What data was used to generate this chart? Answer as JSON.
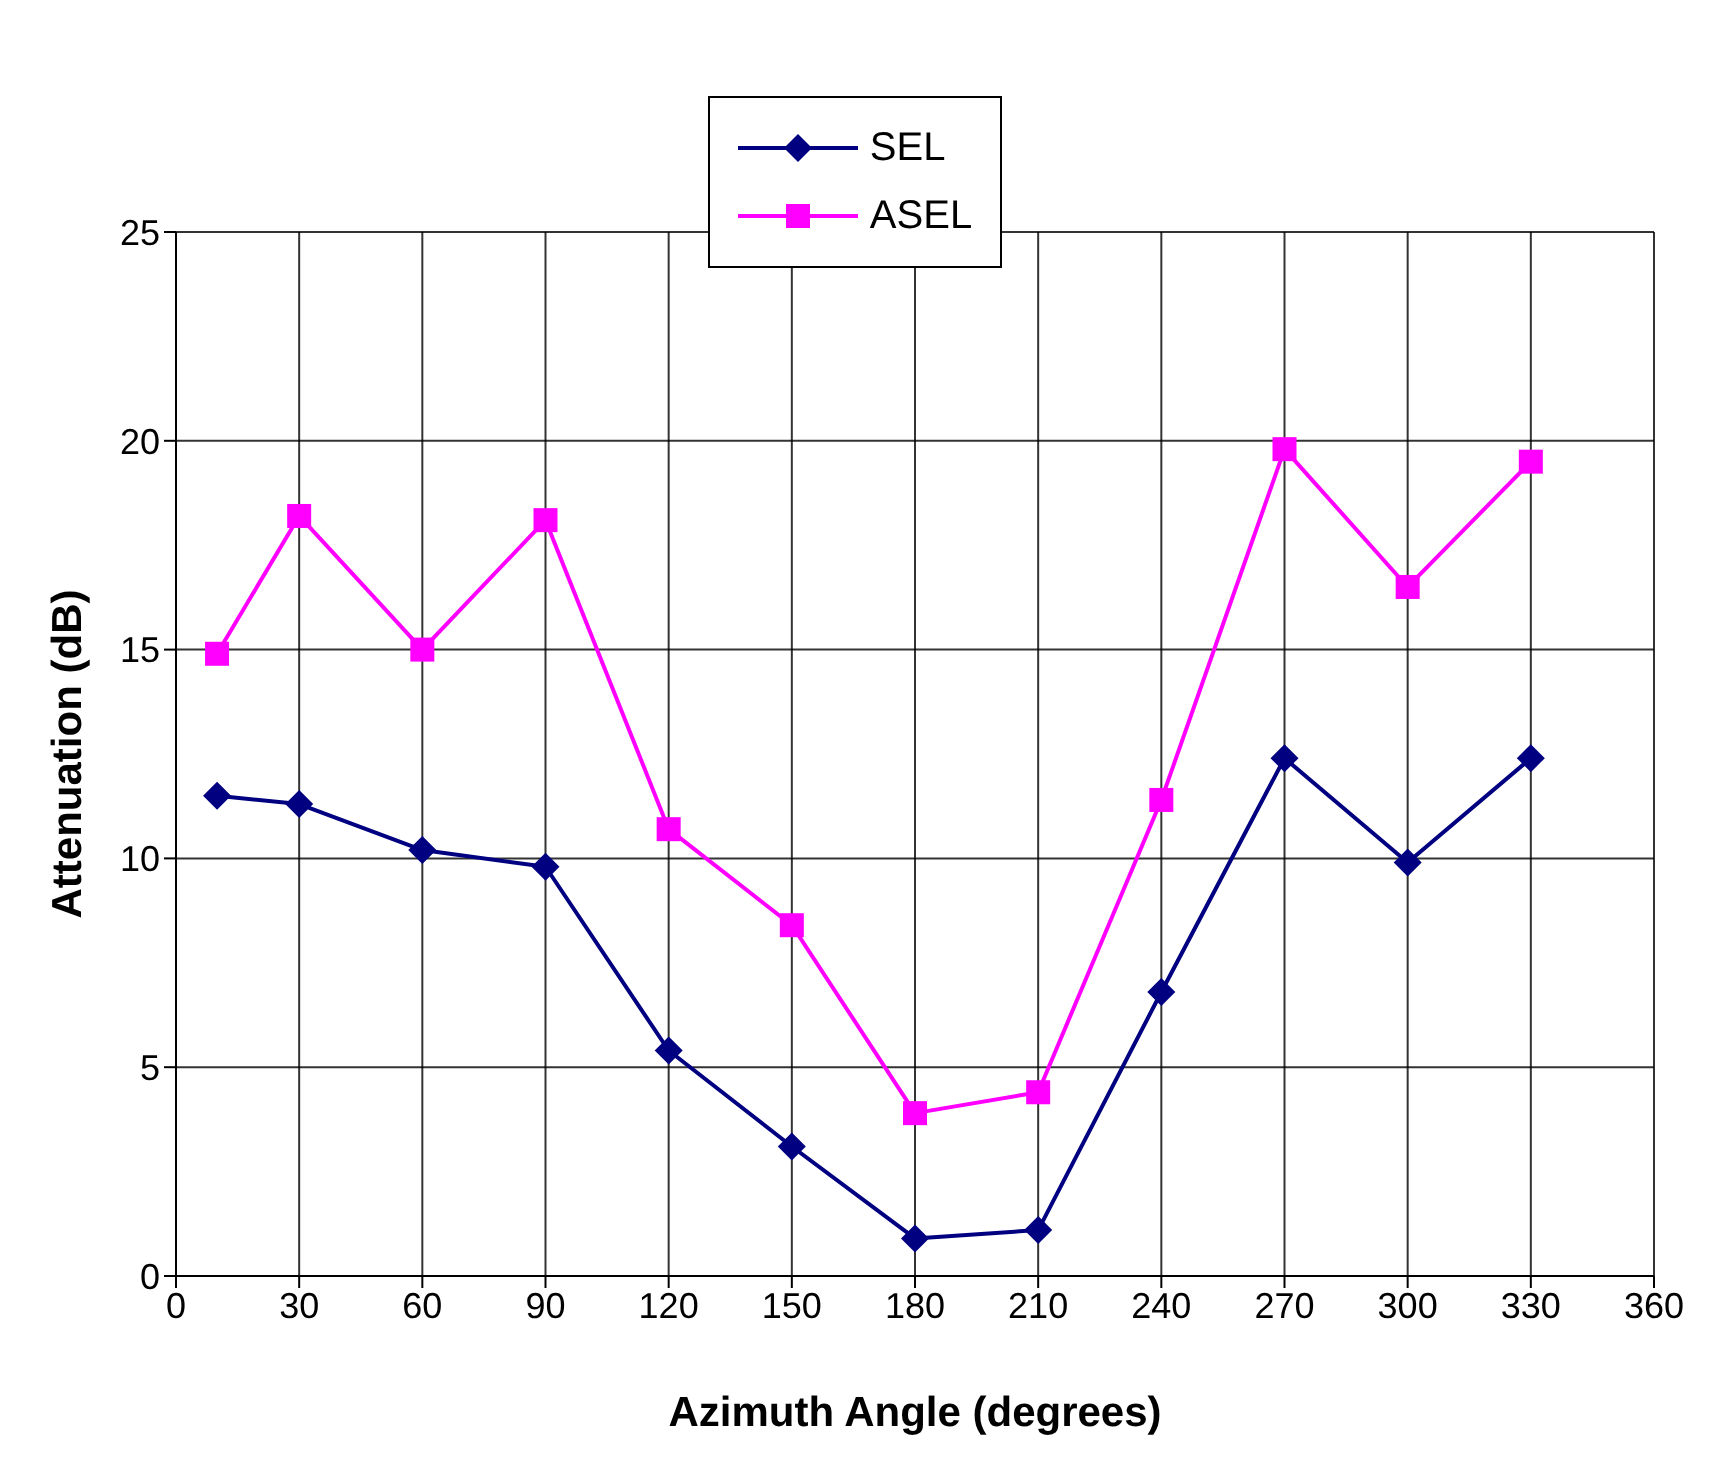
{
  "chart_data": {
    "type": "line",
    "xlabel": "Azimuth Angle (degrees)",
    "ylabel": "Attenuation (dB)",
    "x": [
      10,
      30,
      60,
      90,
      120,
      150,
      180,
      210,
      240,
      270,
      300,
      330
    ],
    "series": [
      {
        "name": "SEL",
        "color": "#000080",
        "marker": "diamond",
        "values": [
          11.5,
          11.3,
          10.2,
          9.8,
          5.4,
          3.1,
          0.9,
          1.1,
          6.8,
          12.4,
          9.9,
          12.4
        ]
      },
      {
        "name": "ASEL",
        "color": "#ff00ff",
        "marker": "square",
        "values": [
          14.9,
          18.2,
          15.0,
          18.1,
          10.7,
          8.4,
          3.9,
          4.4,
          11.4,
          19.8,
          16.5,
          19.5
        ]
      }
    ],
    "xlim": [
      0,
      360
    ],
    "xticks": [
      0,
      30,
      60,
      90,
      120,
      150,
      180,
      210,
      240,
      270,
      300,
      330,
      360
    ],
    "ylim": [
      0,
      25
    ],
    "yticks": [
      0,
      5,
      10,
      15,
      20,
      25
    ],
    "grid": true,
    "legend": "top"
  }
}
